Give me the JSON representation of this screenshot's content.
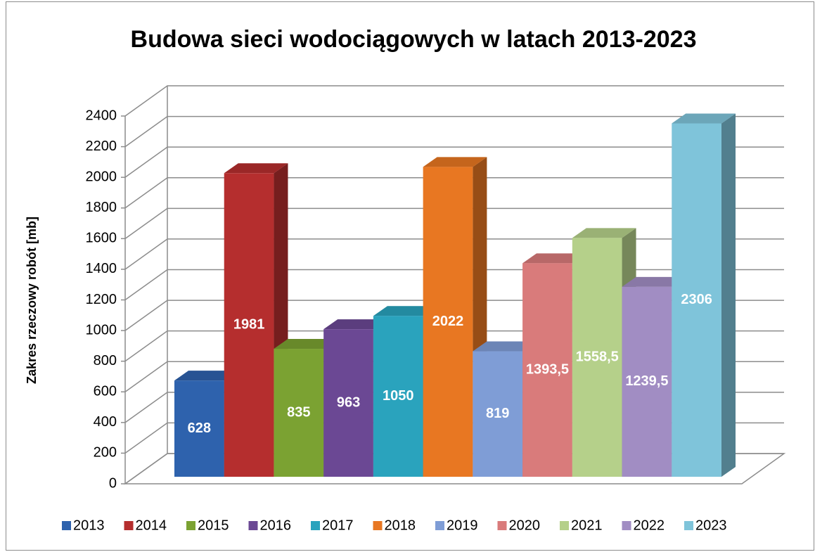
{
  "chart_data": {
    "type": "bar",
    "title": "Budowa sieci wodociągowych w latach 2013-2023",
    "y_label": "Zakres rzeczowy robót [mb]",
    "categories": [
      null
    ],
    "ylim": [
      0,
      2400
    ],
    "yticks": [
      0,
      200,
      400,
      600,
      800,
      1000,
      1200,
      1400,
      1600,
      1800,
      2000,
      2200,
      2400
    ],
    "grid": true,
    "legend": "bottom",
    "series": [
      {
        "name": "2013",
        "color": "#2e62ad",
        "values": [
          628
        ]
      },
      {
        "name": "2014",
        "color": "#b52e2e",
        "values": [
          1981
        ]
      },
      {
        "name": "2015",
        "color": "#7ba232",
        "values": [
          835
        ]
      },
      {
        "name": "2016",
        "color": "#6b4894",
        "values": [
          963
        ]
      },
      {
        "name": "2017",
        "color": "#2aa3bd",
        "values": [
          1050
        ]
      },
      {
        "name": "2018",
        "color": "#e87722",
        "values": [
          2022
        ]
      },
      {
        "name": "2019",
        "color": "#7f9dd6",
        "values": [
          819
        ]
      },
      {
        "name": "2020",
        "color": "#d97b7b",
        "values": [
          1393.5
        ],
        "value_labels": [
          "1393,5"
        ]
      },
      {
        "name": "2021",
        "color": "#b5d08a",
        "values": [
          1558.5
        ],
        "value_labels": [
          "1558,5"
        ]
      },
      {
        "name": "2022",
        "color": "#a18dc3",
        "values": [
          1239.5
        ],
        "value_labels": [
          "1239,5"
        ]
      },
      {
        "name": "2023",
        "color": "#7fc4da",
        "values": [
          2306
        ]
      }
    ]
  }
}
